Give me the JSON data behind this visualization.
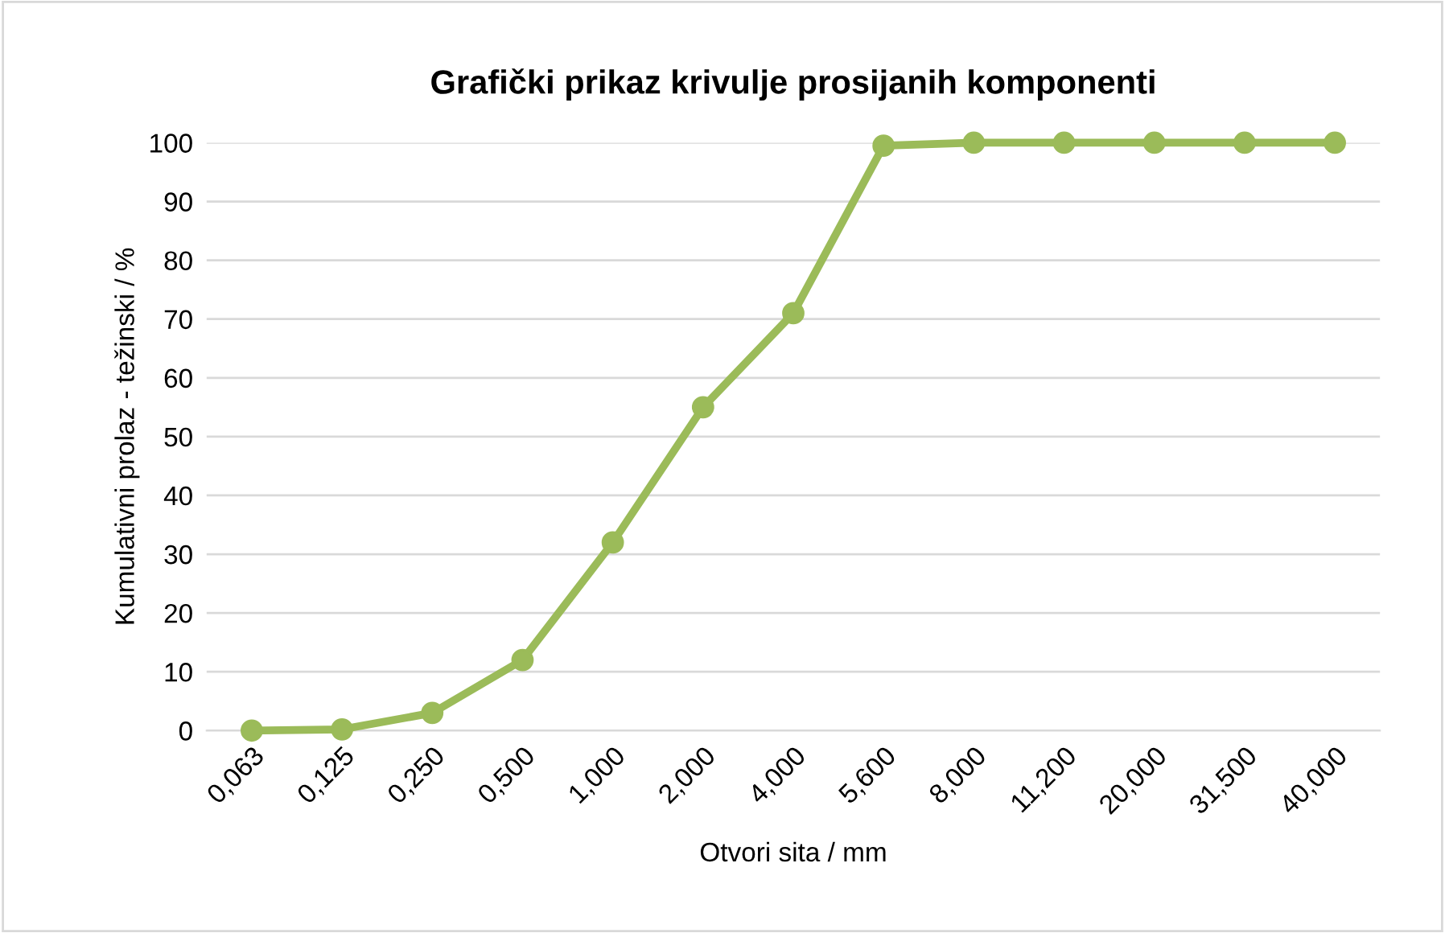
{
  "chart_data": {
    "type": "line",
    "title": "Grafički prikaz krivulje prosijanih komponenti",
    "xlabel": "Otvori sita / mm",
    "ylabel": "Kumulativni prolaz - težinski / %",
    "categories": [
      "0,063",
      "0,125",
      "0,250",
      "0,500",
      "1,000",
      "2,000",
      "4,000",
      "5,600",
      "8,000",
      "11,200",
      "20,000",
      "31,500",
      "40,000"
    ],
    "series": [
      {
        "color": "#9bbb59",
        "values": [
          0,
          0.2,
          3,
          12,
          32,
          55,
          71,
          99.5,
          100,
          100,
          100,
          100,
          100
        ]
      }
    ],
    "ylim": [
      0,
      100
    ],
    "yticks": [
      0,
      10,
      20,
      30,
      40,
      50,
      60,
      70,
      80,
      90,
      100
    ],
    "grid": "y",
    "marker": "circle",
    "line_style": "solid"
  }
}
